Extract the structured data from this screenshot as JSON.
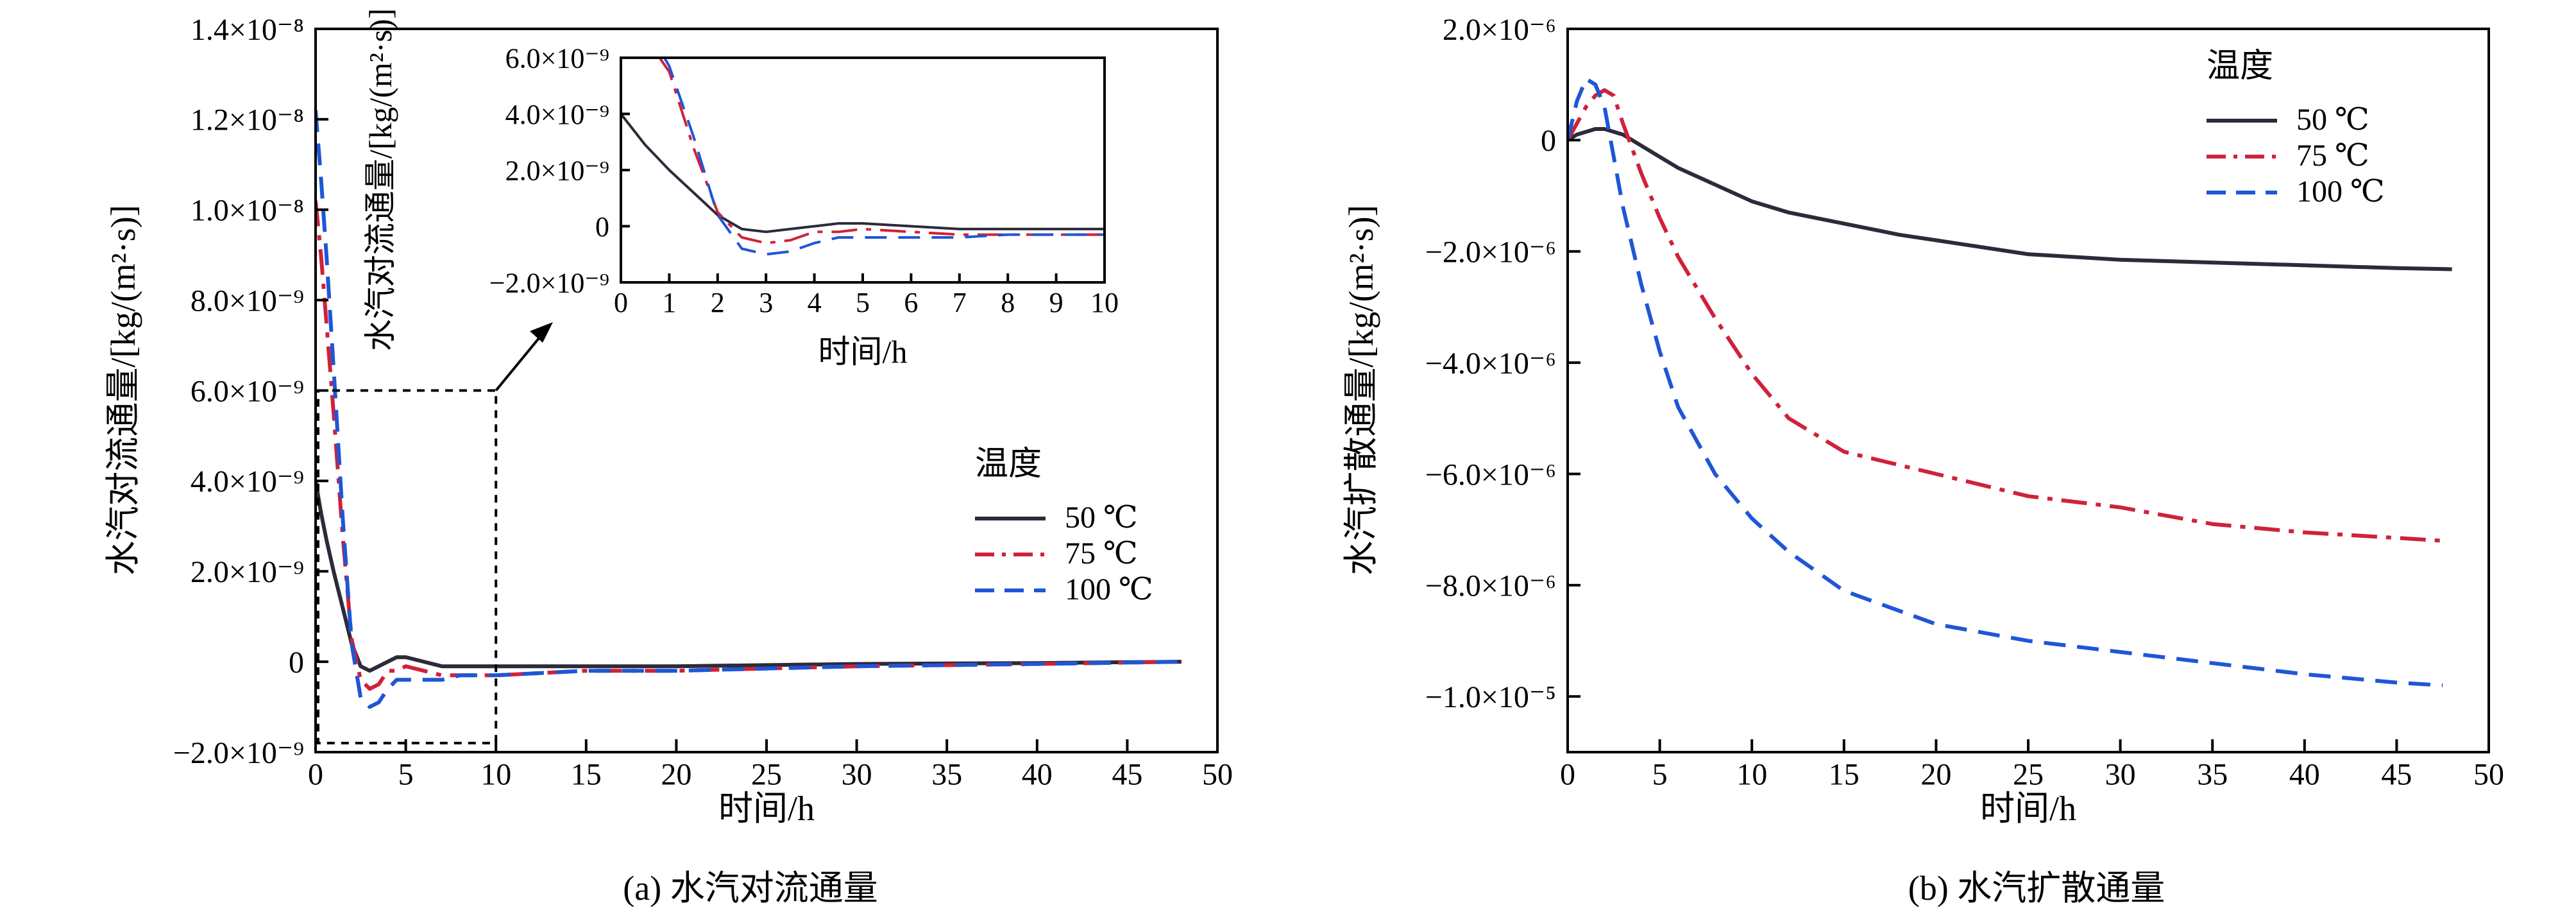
{
  "figure": {
    "caption_a": "(a) 水汽对流通量",
    "caption_b": "(b) 水汽扩散通量"
  },
  "chart_data": [
    {
      "id": "a",
      "type": "line",
      "title": "",
      "xlabel": "时间/h",
      "ylabel": "水汽对流通量/[kg/(m²·s)]",
      "xlim": [
        0,
        50
      ],
      "ylim": [
        -2e-09,
        1.4e-08
      ],
      "xticks": [
        0,
        5,
        10,
        15,
        20,
        25,
        30,
        35,
        40,
        45,
        50
      ],
      "xtick_labels": [
        "0",
        "5",
        "10",
        "15",
        "20",
        "25",
        "30",
        "35",
        "40",
        "45",
        "50"
      ],
      "yticks": [
        -2e-09,
        0,
        2e-09,
        4e-09,
        6e-09,
        8e-09,
        1e-08,
        1.2e-08,
        1.4e-08
      ],
      "ytick_labels": [
        "−2.0×10⁻⁹",
        "0",
        "2.0×10⁻⁹",
        "4.0×10⁻⁹",
        "6.0×10⁻⁹",
        "8.0×10⁻⁹",
        "1.0×10⁻⁸",
        "1.2×10⁻⁸",
        "1.4×10⁻⁸"
      ],
      "legend": {
        "title": "温度",
        "position": "center-right"
      },
      "grid": false,
      "zoom_box": {
        "x": [
          0,
          10
        ],
        "y": [
          -1.8e-09,
          6e-09
        ]
      },
      "series": [
        {
          "name": "50 ℃",
          "color": "#2b2b3a",
          "dash": "solid",
          "x": [
            0,
            0.3,
            0.6,
            1,
            1.5,
            2,
            2.5,
            3,
            3.5,
            4,
            4.5,
            5,
            6,
            7,
            8,
            10,
            15,
            20,
            30,
            40,
            48
          ],
          "y": [
            4e-09,
            3.3e-09,
            2.7e-09,
            2e-09,
            1.2e-09,
            4e-10,
            -1e-10,
            -2e-10,
            -1e-10,
            0,
            1e-10,
            1e-10,
            0,
            -1e-10,
            -1e-10,
            -1e-10,
            -1e-10,
            -1e-10,
            -5e-11,
            -3e-11,
            0
          ]
        },
        {
          "name": "75 ℃",
          "color": "#d0213a",
          "dash": "dashdot",
          "x": [
            0,
            0.3,
            0.6,
            1,
            1.5,
            2,
            2.5,
            3,
            3.5,
            4,
            4.5,
            5,
            6,
            7,
            8,
            10,
            15,
            20,
            30,
            40,
            48
          ],
          "y": [
            1.02e-08,
            9e-09,
            7.5e-09,
            5.5e-09,
            2.8e-09,
            5e-10,
            -4e-10,
            -6e-10,
            -5e-10,
            -2e-10,
            -2e-10,
            -1e-10,
            -2e-10,
            -3e-10,
            -3e-10,
            -3e-10,
            -2e-10,
            -2e-10,
            -1e-10,
            -5e-11,
            0
          ]
        },
        {
          "name": "100 ℃",
          "color": "#1f56d6",
          "dash": "dashed",
          "x": [
            0,
            0.3,
            0.6,
            1,
            1.5,
            2,
            2.5,
            3,
            3.5,
            4,
            4.5,
            5,
            6,
            7,
            8,
            10,
            15,
            20,
            30,
            40,
            48
          ],
          "y": [
            1.22e-08,
            1.07e-08,
            9e-09,
            6.5e-09,
            3.2e-09,
            4e-10,
            -8e-10,
            -1e-09,
            -9e-10,
            -6e-10,
            -4e-10,
            -4e-10,
            -4e-10,
            -4e-10,
            -3e-10,
            -3e-10,
            -2e-10,
            -2e-10,
            -1e-10,
            -5e-11,
            0
          ]
        }
      ]
    },
    {
      "id": "a-inset",
      "type": "line",
      "title": "",
      "xlabel": "时间/h",
      "ylabel": "水汽对流通量/[kg/(m²·s)]",
      "xlim": [
        0,
        10
      ],
      "ylim": [
        -2e-09,
        6e-09
      ],
      "xticks": [
        0,
        1,
        2,
        3,
        4,
        5,
        6,
        7,
        8,
        9,
        10
      ],
      "xtick_labels": [
        "0",
        "1",
        "2",
        "3",
        "4",
        "5",
        "6",
        "7",
        "8",
        "9",
        "10"
      ],
      "yticks": [
        -2e-09,
        0,
        2e-09,
        4e-09,
        6e-09
      ],
      "ytick_labels": [
        "−2.0×10⁻⁹",
        "0",
        "2.0×10⁻⁹",
        "4.0×10⁻⁹",
        "6.0×10⁻⁹"
      ],
      "grid": false,
      "series": [
        {
          "name": "50 ℃",
          "color": "#2b2b3a",
          "dash": "solid",
          "x": [
            0,
            0.5,
            1,
            1.5,
            2,
            2.5,
            3,
            3.5,
            4,
            4.5,
            5,
            6,
            7,
            8,
            9,
            10
          ],
          "y": [
            4e-09,
            2.9e-09,
            2e-09,
            1.2e-09,
            4e-10,
            -1e-10,
            -2e-10,
            -1e-10,
            0,
            1e-10,
            1e-10,
            0,
            -1e-10,
            -1e-10,
            -1e-10,
            -1e-10
          ]
        },
        {
          "name": "75 ℃",
          "color": "#d0213a",
          "dash": "dashdot",
          "x": [
            0.8,
            1,
            1.5,
            2,
            2.5,
            3,
            3.5,
            4,
            4.5,
            5,
            6,
            7,
            8,
            9,
            10
          ],
          "y": [
            6e-09,
            5.5e-09,
            2.8e-09,
            5e-10,
            -4e-10,
            -6e-10,
            -5e-10,
            -2e-10,
            -2e-10,
            -1e-10,
            -2e-10,
            -3e-10,
            -3e-10,
            -3e-10,
            -3e-10
          ]
        },
        {
          "name": "100 ℃",
          "color": "#1f56d6",
          "dash": "dashed",
          "x": [
            0.9,
            1,
            1.5,
            2,
            2.5,
            3,
            3.5,
            4,
            4.5,
            5,
            6,
            7,
            8,
            9,
            10
          ],
          "y": [
            6e-09,
            5.7e-09,
            3.2e-09,
            4e-10,
            -8e-10,
            -1e-09,
            -9e-10,
            -6e-10,
            -4e-10,
            -4e-10,
            -4e-10,
            -4e-10,
            -3e-10,
            -3e-10,
            -3e-10
          ]
        }
      ]
    },
    {
      "id": "b",
      "type": "line",
      "title": "",
      "xlabel": "时间/h",
      "ylabel": "水汽扩散通量/[kg/(m²·s)]",
      "xlim": [
        0,
        50
      ],
      "ylim": [
        -1.1e-05,
        2e-06
      ],
      "xticks": [
        0,
        5,
        10,
        15,
        20,
        25,
        30,
        35,
        40,
        45,
        50
      ],
      "xtick_labels": [
        "0",
        "5",
        "10",
        "15",
        "20",
        "25",
        "30",
        "35",
        "40",
        "45",
        "50"
      ],
      "yticks": [
        -1e-05,
        -8e-06,
        -6e-06,
        -4e-06,
        -2e-06,
        0,
        2e-06
      ],
      "ytick_labels": [
        "−1.0×10⁻⁵",
        "−8.0×10⁻⁶",
        "−6.0×10⁻⁶",
        "−4.0×10⁻⁶",
        "−2.0×10⁻⁶",
        "0",
        "2.0×10⁻⁶"
      ],
      "legend": {
        "title": "温度",
        "position": "top-right"
      },
      "grid": false,
      "series": [
        {
          "name": "50 ℃",
          "color": "#2b2b3a",
          "dash": "solid",
          "x": [
            0,
            0.5,
            1,
            1.5,
            2,
            2.5,
            3,
            4,
            5,
            6,
            8,
            10,
            12,
            15,
            18,
            20,
            25,
            30,
            35,
            40,
            45,
            48
          ],
          "y": [
            0,
            1e-07,
            1.5e-07,
            2e-07,
            2e-07,
            1.5e-07,
            1e-07,
            -1e-07,
            -3e-07,
            -5e-07,
            -8e-07,
            -1.1e-06,
            -1.3e-06,
            -1.5e-06,
            -1.7e-06,
            -1.8e-06,
            -2.05e-06,
            -2.15e-06,
            -2.2e-06,
            -2.25e-06,
            -2.3e-06,
            -2.32e-06
          ]
        },
        {
          "name": "75 ℃",
          "color": "#d0213a",
          "dash": "dashdot",
          "x": [
            0,
            0.5,
            1,
            1.5,
            2,
            2.5,
            3,
            4,
            5,
            6,
            8,
            10,
            12,
            15,
            20,
            25,
            30,
            35,
            40,
            45,
            47.5
          ],
          "y": [
            0,
            3e-07,
            6e-07,
            8e-07,
            9e-07,
            8e-07,
            3e-07,
            -6e-07,
            -1.4e-06,
            -2.1e-06,
            -3.2e-06,
            -4.2e-06,
            -5e-06,
            -5.6e-06,
            -6e-06,
            -6.4e-06,
            -6.6e-06,
            -6.9e-06,
            -7.05e-06,
            -7.15e-06,
            -7.2e-06
          ]
        },
        {
          "name": "100 ℃",
          "color": "#1f56d6",
          "dash": "dashed",
          "x": [
            0,
            0.5,
            1,
            1.5,
            2,
            2.5,
            3,
            4,
            5,
            6,
            8,
            10,
            12,
            15,
            20,
            25,
            30,
            35,
            40,
            45,
            47.5
          ],
          "y": [
            0,
            7e-07,
            1.1e-06,
            1e-06,
            6e-07,
            -3e-07,
            -1.2e-06,
            -2.6e-06,
            -3.8e-06,
            -4.8e-06,
            -6e-06,
            -6.8e-06,
            -7.4e-06,
            -8.1e-06,
            -8.7e-06,
            -9e-06,
            -9.2e-06,
            -9.4e-06,
            -9.6e-06,
            -9.75e-06,
            -9.8e-06
          ]
        }
      ]
    }
  ]
}
